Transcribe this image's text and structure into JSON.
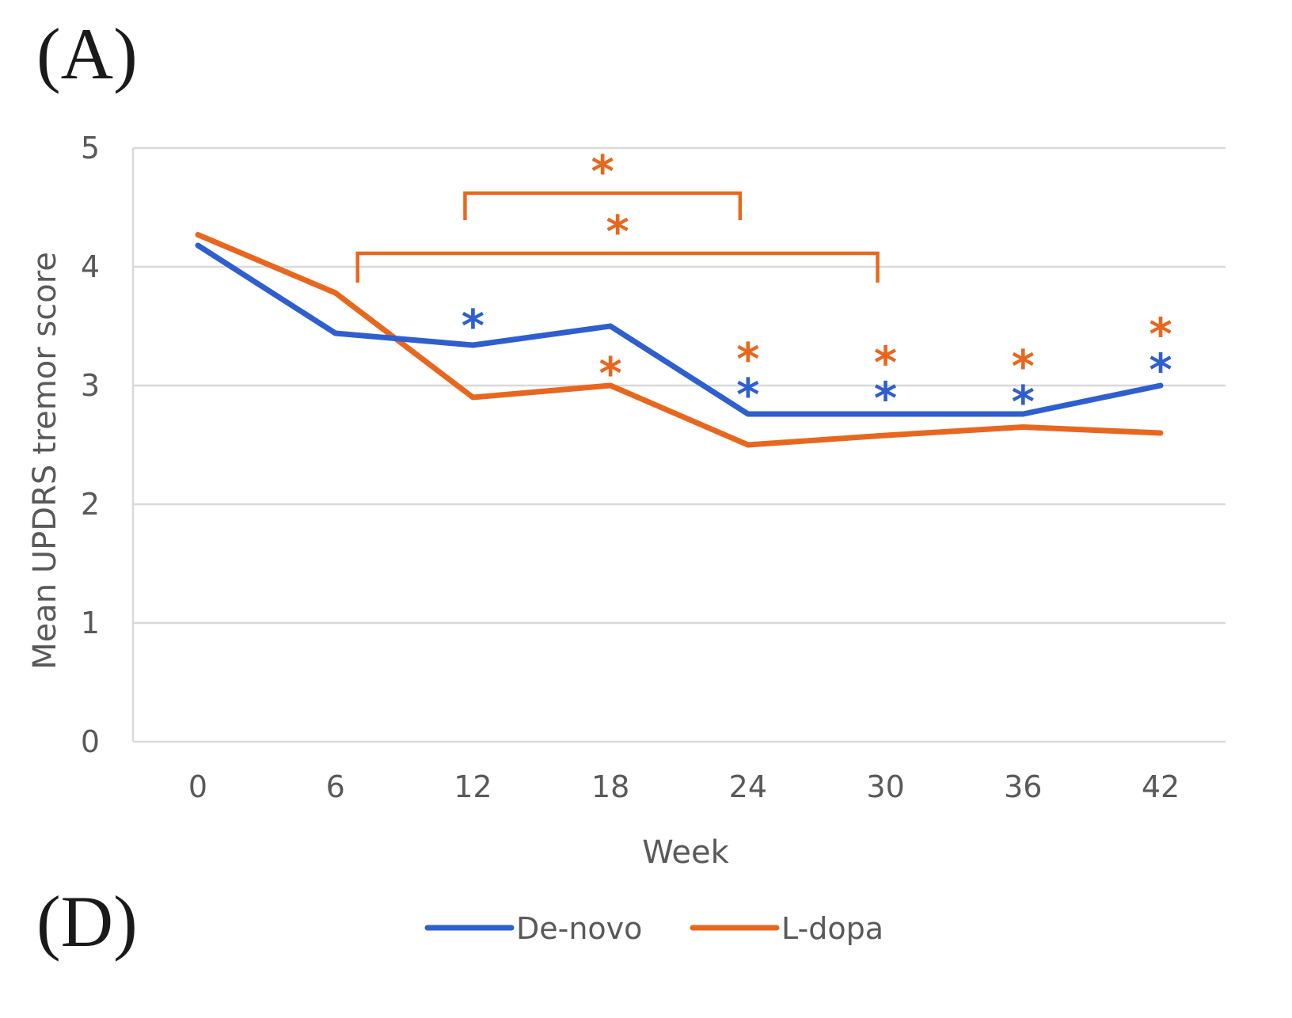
{
  "panel_labels": {
    "top": "(A)",
    "bottom": "(D)"
  },
  "chart_data": {
    "type": "line",
    "xlabel": "Week",
    "ylabel": "Mean UPDRS tremor  score",
    "x": [
      0,
      6,
      12,
      18,
      24,
      30,
      36,
      42
    ],
    "x_tick_labels": [
      "0",
      "6",
      "12",
      "18",
      "24",
      "30",
      "36",
      "42"
    ],
    "ylim": [
      0,
      5
    ],
    "y_ticks": [
      0,
      1,
      2,
      3,
      4,
      5
    ],
    "grid": true,
    "legend_position": "bottom",
    "series": [
      {
        "name": "De-novo",
        "color": "#2f5fcf",
        "values": [
          4.18,
          3.44,
          3.34,
          3.5,
          2.76,
          2.76,
          2.76,
          3.0
        ]
      },
      {
        "name": "L-dopa",
        "color": "#e8671f",
        "values": [
          4.27,
          3.78,
          2.9,
          3.0,
          2.5,
          2.58,
          2.65,
          2.6
        ]
      }
    ],
    "annotations": {
      "symbol": "*",
      "brackets": [
        {
          "x_from": 12,
          "x_to": 24,
          "color": "#e8671f"
        },
        {
          "x_from": 6,
          "x_to": 30,
          "color": "#e8671f"
        }
      ],
      "markers": [
        {
          "x": 12,
          "y": 3.6,
          "color": "#2f5fcf"
        },
        {
          "x": 18,
          "y": 3.2,
          "color": "#e8671f"
        },
        {
          "x": 24,
          "y": 3.32,
          "color": "#e8671f"
        },
        {
          "x": 24,
          "y": 3.02,
          "color": "#2f5fcf"
        },
        {
          "x": 30,
          "y": 3.29,
          "color": "#e8671f"
        },
        {
          "x": 30,
          "y": 2.99,
          "color": "#2f5fcf"
        },
        {
          "x": 36,
          "y": 3.26,
          "color": "#e8671f"
        },
        {
          "x": 36,
          "y": 2.96,
          "color": "#2f5fcf"
        },
        {
          "x": 42,
          "y": 3.53,
          "color": "#e8671f"
        },
        {
          "x": 42,
          "y": 3.23,
          "color": "#2f5fcf"
        }
      ]
    }
  }
}
